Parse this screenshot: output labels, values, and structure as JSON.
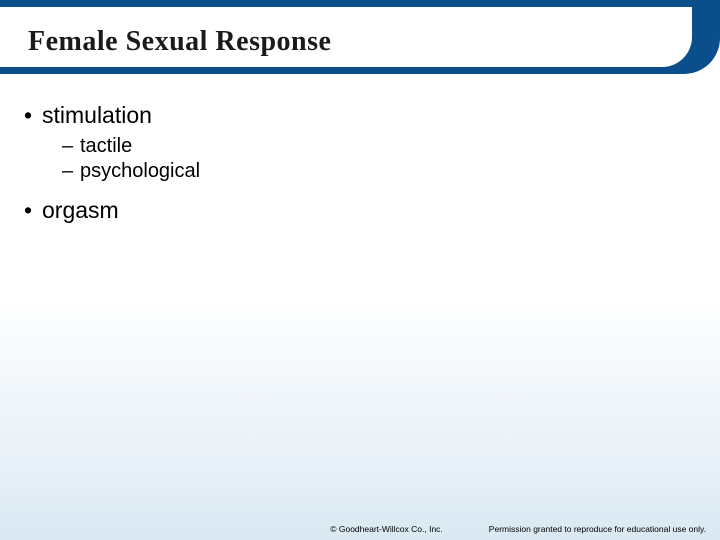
{
  "slide": {
    "title": "Female Sexual Response",
    "bullets": [
      {
        "text": "stimulation",
        "sub": [
          "tactile",
          "psychological"
        ]
      },
      {
        "text": "orgasm",
        "sub": []
      }
    ]
  },
  "footer": {
    "copyright": "© Goodheart-Willcox Co., Inc.",
    "permission": "Permission granted to reproduce for educational use only."
  },
  "style": {
    "header_bg": "#0a4e8c",
    "title_fontsize": 28,
    "l1_fontsize": 23,
    "l2_fontsize": 20,
    "footer_fontsize": 8.5,
    "gradient_bottom": "#d9e8f2"
  }
}
